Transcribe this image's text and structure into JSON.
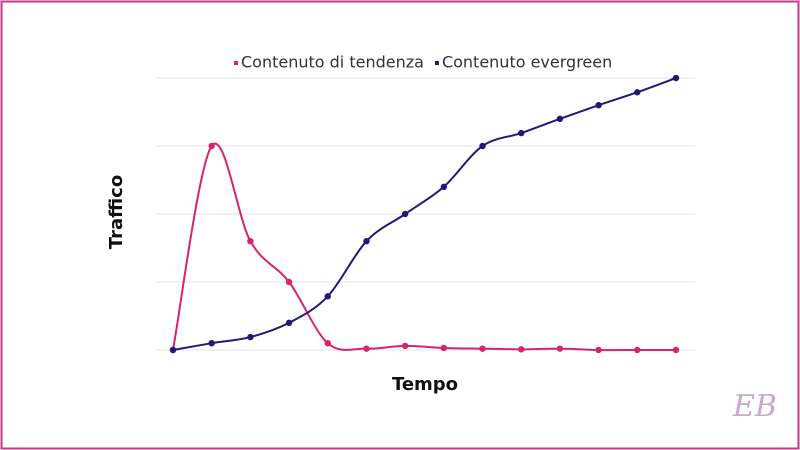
{
  "chart_data": {
    "type": "line",
    "x_label": "Tempo",
    "y_label": "Traffico",
    "categories": [
      null,
      null,
      null,
      null,
      null,
      null,
      null,
      null,
      null,
      null,
      null,
      null,
      null,
      null
    ],
    "series": [
      {
        "name": "Contenuto di tendenza",
        "color": "#d6246e",
        "values": [
          0,
          3.0,
          1.6,
          1.0,
          0.1,
          0.02,
          0.06,
          0.03,
          0.02,
          0.01,
          0.02,
          0,
          0,
          0
        ]
      },
      {
        "name": "Contenuto evergreen",
        "color": "#1f1a78",
        "values": [
          0,
          0.1,
          0.19,
          0.4,
          0.79,
          1.6,
          2.0,
          2.4,
          3.0,
          3.19,
          3.4,
          3.6,
          3.79,
          4.0
        ]
      }
    ],
    "ylim": [
      0,
      4
    ],
    "yticks": [
      0,
      1,
      2,
      3,
      4
    ],
    "grid": true,
    "legend": "top",
    "watermark": "EB"
  }
}
